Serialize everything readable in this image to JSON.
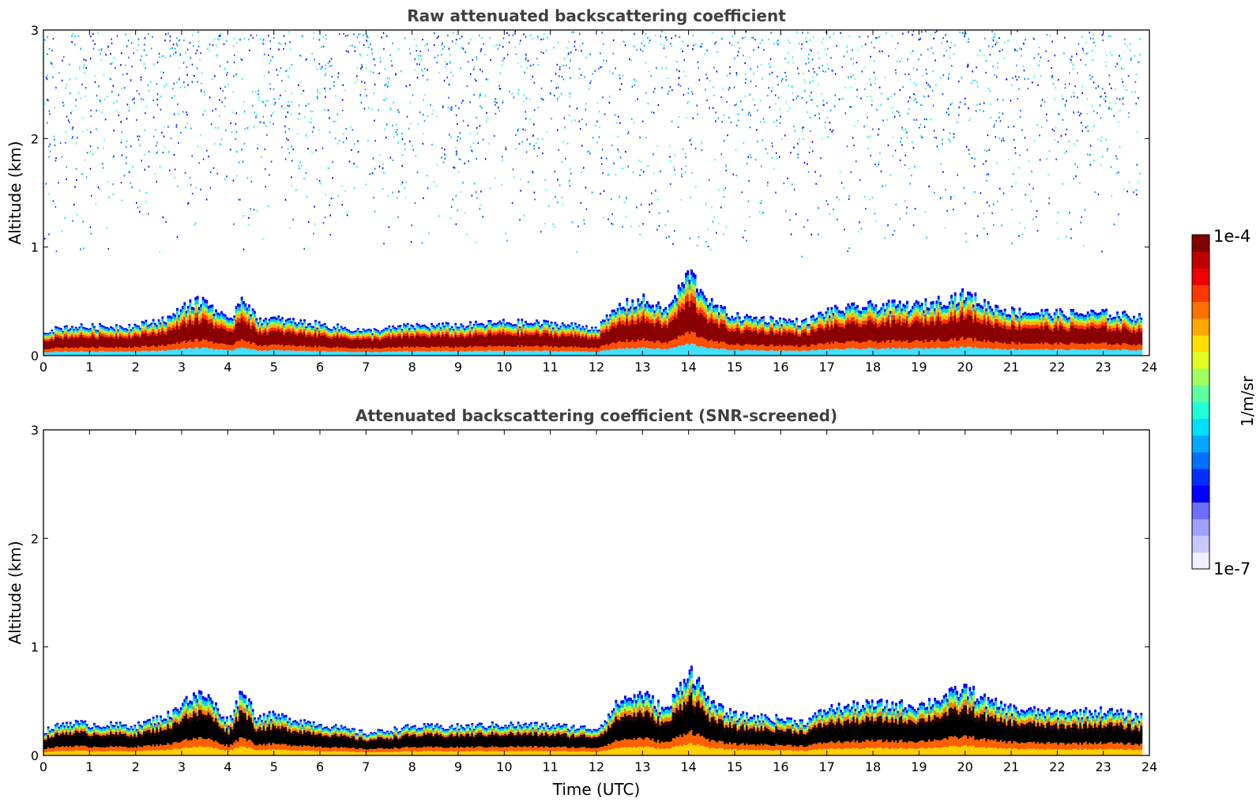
{
  "chart_data": [
    {
      "type": "heatmap",
      "title": "Raw attenuated backscattering coefficient",
      "xlabel": "",
      "ylabel": "Altitude (km)",
      "xlim": [
        0,
        24
      ],
      "ylim": [
        0,
        3
      ],
      "xticks": [
        "0",
        "1",
        "2",
        "3",
        "4",
        "5",
        "6",
        "7",
        "8",
        "9",
        "10",
        "11",
        "12",
        "13",
        "14",
        "15",
        "16",
        "17",
        "18",
        "19",
        "20",
        "21",
        "22",
        "23",
        "24"
      ],
      "yticks": [
        "0",
        "1",
        "2",
        "3"
      ],
      "data_end_hour": 23.8,
      "layer_top_km": [
        [
          0.0,
          0.22
        ],
        [
          0.5,
          0.26
        ],
        [
          1.0,
          0.26
        ],
        [
          2.0,
          0.27
        ],
        [
          2.8,
          0.35
        ],
        [
          3.0,
          0.45
        ],
        [
          3.5,
          0.5
        ],
        [
          4.0,
          0.3
        ],
        [
          4.3,
          0.55
        ],
        [
          4.6,
          0.33
        ],
        [
          5.0,
          0.33
        ],
        [
          6.0,
          0.28
        ],
        [
          7.0,
          0.22
        ],
        [
          8.0,
          0.27
        ],
        [
          9.0,
          0.27
        ],
        [
          10.0,
          0.3
        ],
        [
          11.0,
          0.29
        ],
        [
          12.0,
          0.25
        ],
        [
          12.5,
          0.45
        ],
        [
          13.0,
          0.5
        ],
        [
          13.5,
          0.4
        ],
        [
          14.0,
          0.75
        ],
        [
          14.5,
          0.45
        ],
        [
          15.0,
          0.35
        ],
        [
          16.0,
          0.32
        ],
        [
          16.5,
          0.3
        ],
        [
          17.0,
          0.4
        ],
        [
          18.0,
          0.45
        ],
        [
          19.0,
          0.45
        ],
        [
          20.0,
          0.55
        ],
        [
          20.5,
          0.45
        ],
        [
          21.0,
          0.4
        ],
        [
          22.0,
          0.38
        ],
        [
          23.0,
          0.38
        ],
        [
          23.8,
          0.35
        ]
      ],
      "noise_region": {
        "from_km": 0.9,
        "to_km": 3.0
      }
    },
    {
      "type": "heatmap",
      "title": "Attenuated backscattering coefficient (SNR-screened)",
      "xlabel": "Time (UTC)",
      "ylabel": "Altitude (km)",
      "xlim": [
        0,
        24
      ],
      "ylim": [
        0,
        3
      ],
      "xticks": [
        "0",
        "1",
        "2",
        "3",
        "4",
        "5",
        "6",
        "7",
        "8",
        "9",
        "10",
        "11",
        "12",
        "13",
        "14",
        "15",
        "16",
        "17",
        "18",
        "19",
        "20",
        "21",
        "22",
        "23",
        "24"
      ],
      "yticks": [
        "0",
        "1",
        "2",
        "3"
      ],
      "data_end_hour": 23.8,
      "layer_top_km": [
        [
          0.0,
          0.22
        ],
        [
          0.5,
          0.3
        ],
        [
          1.0,
          0.28
        ],
        [
          2.0,
          0.27
        ],
        [
          2.8,
          0.38
        ],
        [
          3.0,
          0.5
        ],
        [
          3.5,
          0.55
        ],
        [
          4.0,
          0.3
        ],
        [
          4.3,
          0.6
        ],
        [
          4.6,
          0.35
        ],
        [
          5.0,
          0.36
        ],
        [
          6.0,
          0.28
        ],
        [
          7.0,
          0.2
        ],
        [
          8.0,
          0.26
        ],
        [
          9.0,
          0.26
        ],
        [
          10.0,
          0.28
        ],
        [
          11.0,
          0.27
        ],
        [
          12.0,
          0.24
        ],
        [
          12.5,
          0.5
        ],
        [
          13.0,
          0.55
        ],
        [
          13.5,
          0.4
        ],
        [
          14.0,
          0.78
        ],
        [
          14.5,
          0.45
        ],
        [
          15.0,
          0.36
        ],
        [
          16.0,
          0.33
        ],
        [
          16.5,
          0.3
        ],
        [
          17.0,
          0.42
        ],
        [
          18.0,
          0.46
        ],
        [
          19.0,
          0.45
        ],
        [
          20.0,
          0.6
        ],
        [
          20.5,
          0.48
        ],
        [
          21.0,
          0.42
        ],
        [
          22.0,
          0.38
        ],
        [
          23.0,
          0.4
        ],
        [
          23.8,
          0.35
        ]
      ]
    }
  ],
  "colorbar": {
    "label": "1/m/sr",
    "max_label": "1e-4",
    "min_label": "1e-7",
    "colors": [
      "#f0f0ff",
      "#c8c8ff",
      "#a0a0ff",
      "#6e6eff",
      "#0000ff",
      "#0030ff",
      "#0070ff",
      "#00a8ff",
      "#00e0ff",
      "#20ffd8",
      "#60ffa0",
      "#a0ff60",
      "#e0ff20",
      "#ffe000",
      "#ffa800",
      "#ff7000",
      "#ff3800",
      "#f00000",
      "#c00000",
      "#800000"
    ]
  }
}
